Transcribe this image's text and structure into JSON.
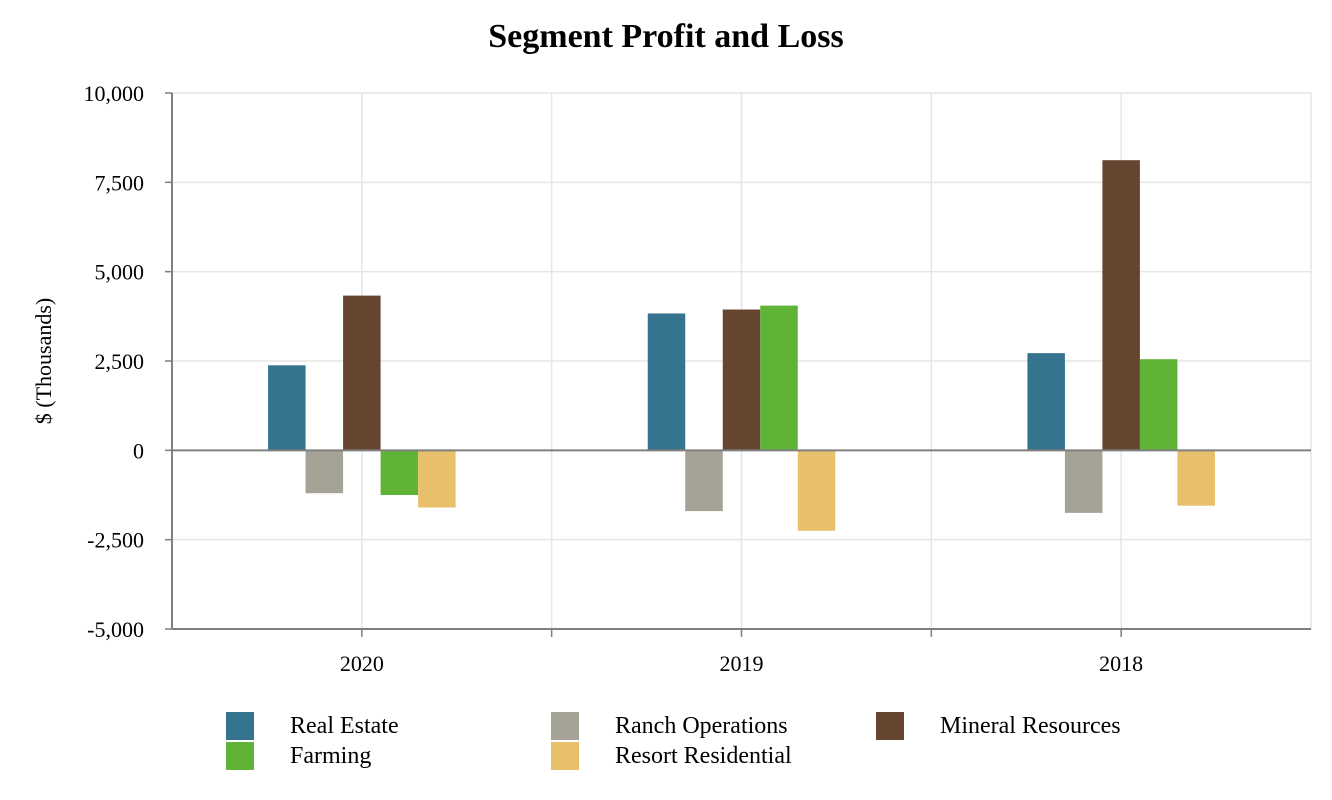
{
  "chart_data": {
    "type": "bar",
    "title": "Segment Profit and Loss",
    "xlabel": "",
    "ylabel": "$ (Thousands)",
    "ylim": [
      -5000,
      10000
    ],
    "yticks": [
      -5000,
      -2500,
      0,
      2500,
      5000,
      7500,
      10000
    ],
    "ytick_labels": [
      "-5,000",
      "-2,500",
      "0",
      "2,500",
      "5,000",
      "7,500",
      "10,000"
    ],
    "categories": [
      "2020",
      "2019",
      "2018"
    ],
    "grid": true,
    "legend_position": "bottom",
    "series": [
      {
        "name": "Real Estate",
        "color": "#36738f",
        "values": [
          2380,
          3830,
          2720
        ]
      },
      {
        "name": "Ranch Operations",
        "color": "#a4a396",
        "values": [
          -1200,
          -1700,
          -1750
        ]
      },
      {
        "name": "Mineral Resources",
        "color": "#654530",
        "values": [
          4330,
          3940,
          8120
        ]
      },
      {
        "name": "Farming",
        "color": "#5fb336",
        "values": [
          -1250,
          4050,
          2550
        ]
      },
      {
        "name": "Resort Residential",
        "color": "#e8c06b",
        "values": [
          -1600,
          -2250,
          -1550
        ]
      }
    ]
  }
}
